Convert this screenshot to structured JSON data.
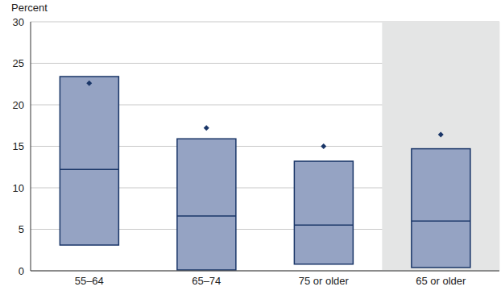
{
  "chart_data": {
    "type": "box",
    "y_label": "Percent",
    "categories": [
      "55–64",
      "65–74",
      "75 or older",
      "65 or older"
    ],
    "low": [
      3.1,
      0.1,
      0.8,
      0.4
    ],
    "high": [
      23.4,
      15.9,
      13.2,
      14.7
    ],
    "median": [
      12.2,
      6.6,
      5.5,
      6.0
    ],
    "dots": [
      22.6,
      17.2,
      15.0,
      16.4
    ],
    "color": "#95a3c3",
    "ylim": [
      0,
      30
    ],
    "yticks": [
      0,
      5,
      10,
      15,
      20,
      25,
      30
    ],
    "grid": true
  }
}
